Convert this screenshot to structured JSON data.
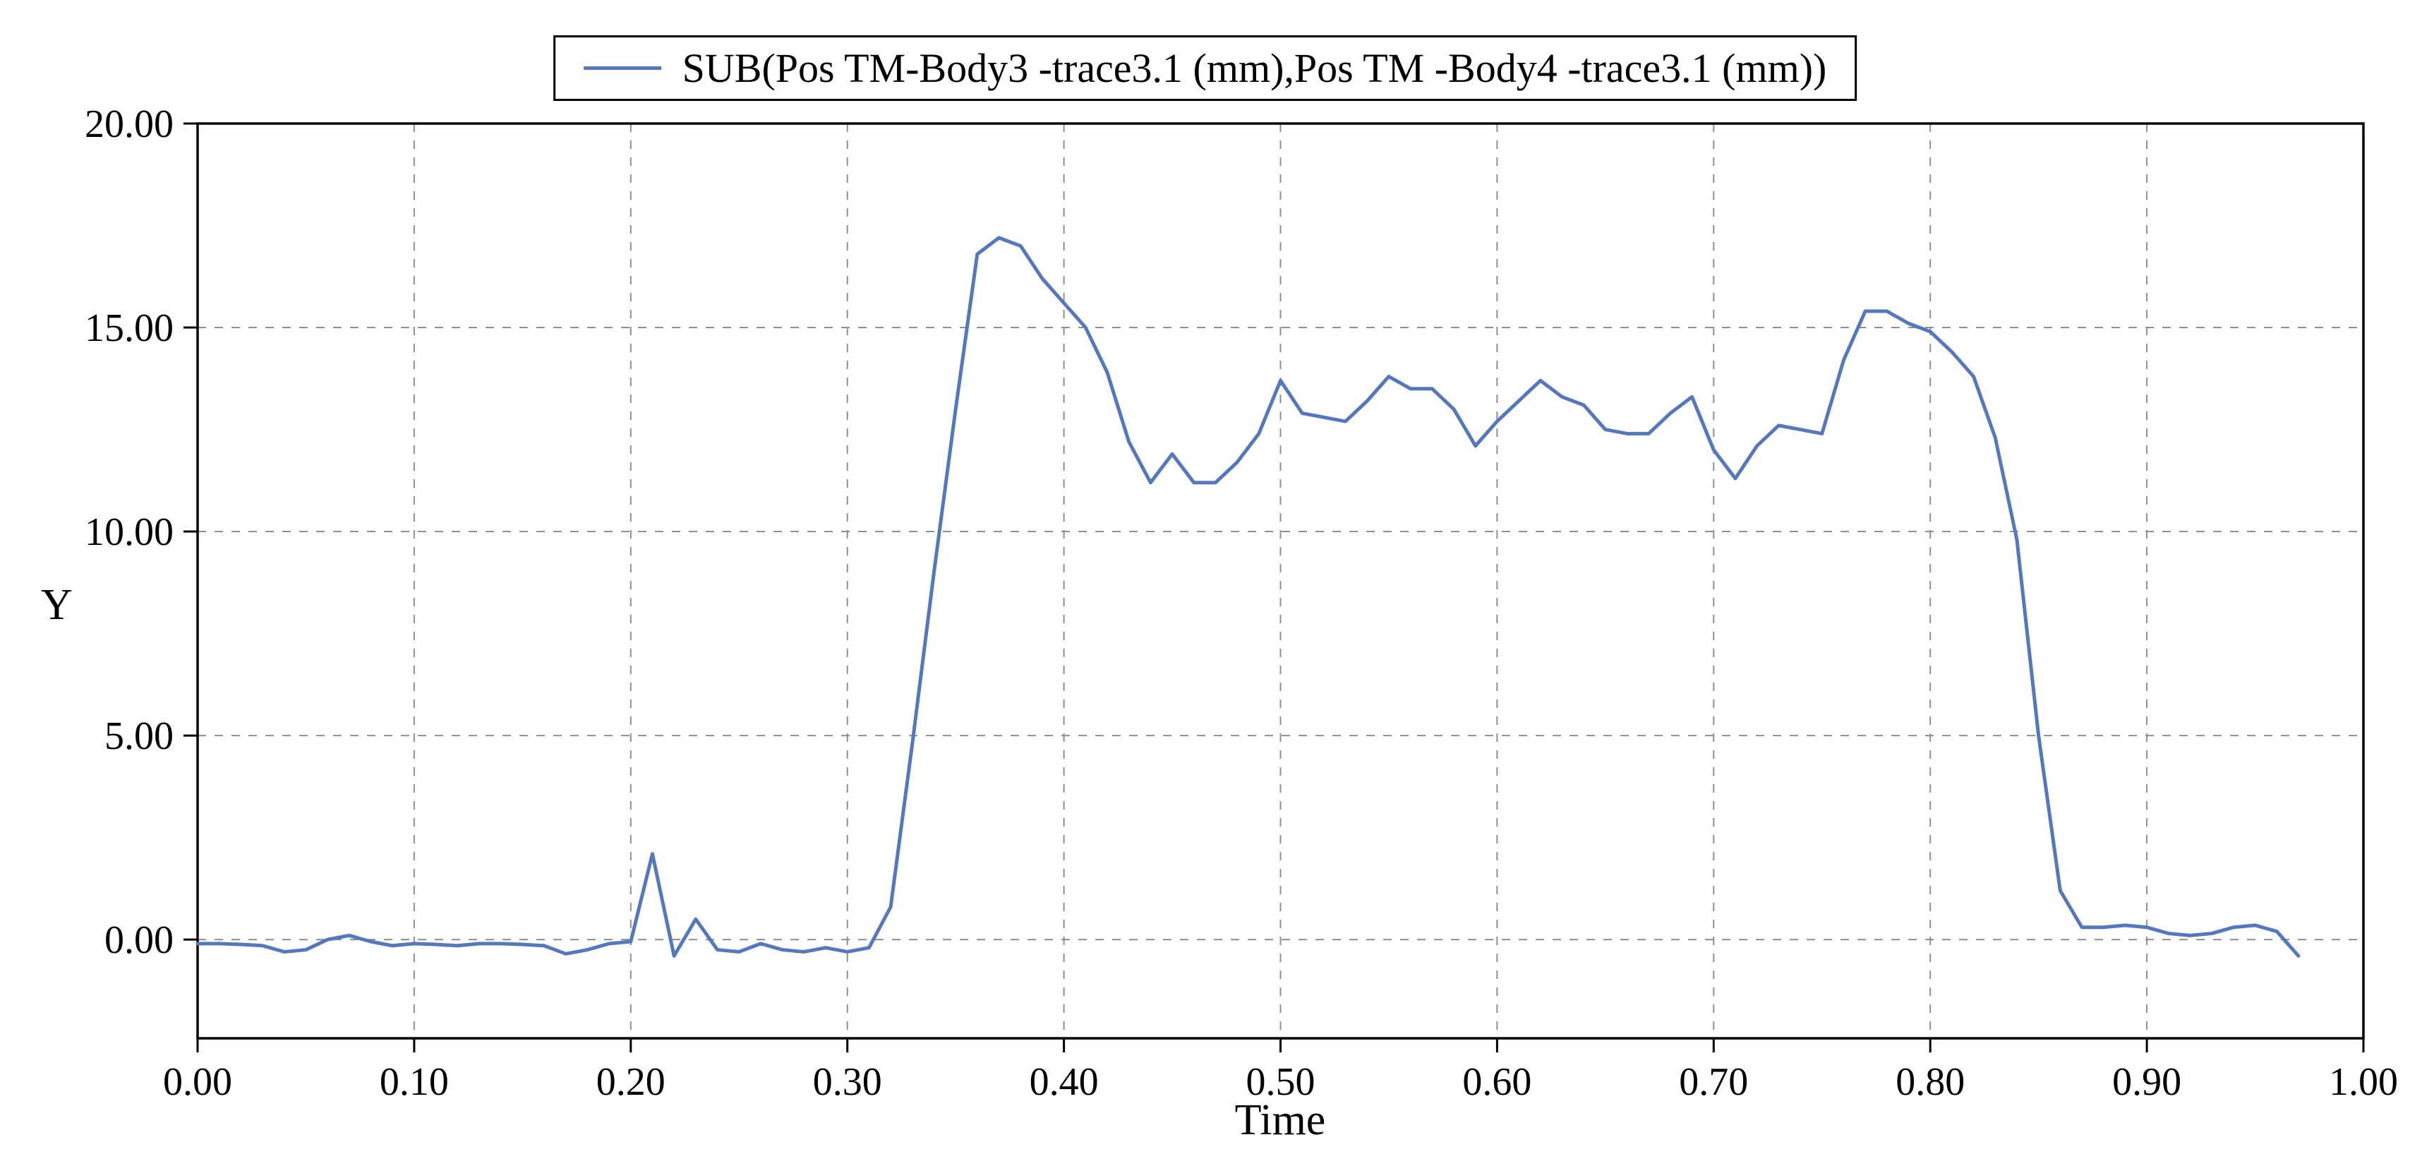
{
  "chart_data": {
    "type": "line",
    "title": "",
    "legend": [
      "SUB(Pos TM-Body3 -trace3.1 (mm),Pos TM -Body4 -trace3.1 (mm))"
    ],
    "xlabel": "Time",
    "ylabel": "Y",
    "xlim": [
      0.0,
      1.0
    ],
    "ylim": [
      -2.42,
      20.0
    ],
    "grid": true,
    "legend_position": "top-center",
    "line_color": "#5577bb",
    "x_ticks": [
      0.0,
      0.1,
      0.2,
      0.3,
      0.4,
      0.5,
      0.6,
      0.7,
      0.8,
      0.9,
      1.0
    ],
    "x_tick_labels": [
      "0.00",
      "0.10",
      "0.20",
      "0.30",
      "0.40",
      "0.50",
      "0.60",
      "0.70",
      "0.80",
      "0.90",
      "1.00"
    ],
    "y_ticks": [
      0.0,
      5.0,
      10.0,
      15.0,
      20.0
    ],
    "y_tick_labels": [
      "0.00",
      "5.00",
      "10.00",
      "15.00",
      "20.00"
    ],
    "series": [
      {
        "name": "SUB(Pos TM-Body3 -trace3.1 (mm),Pos TM -Body4 -trace3.1 (mm))",
        "x": [
          0.0,
          0.01,
          0.02,
          0.03,
          0.04,
          0.05,
          0.06,
          0.07,
          0.08,
          0.09,
          0.1,
          0.11,
          0.12,
          0.13,
          0.14,
          0.15,
          0.16,
          0.17,
          0.18,
          0.19,
          0.2,
          0.21,
          0.22,
          0.23,
          0.24,
          0.25,
          0.26,
          0.27,
          0.28,
          0.29,
          0.3,
          0.31,
          0.32,
          0.33,
          0.34,
          0.35,
          0.36,
          0.37,
          0.38,
          0.39,
          0.4,
          0.41,
          0.42,
          0.43,
          0.44,
          0.45,
          0.46,
          0.47,
          0.48,
          0.49,
          0.5,
          0.51,
          0.52,
          0.53,
          0.54,
          0.55,
          0.56,
          0.57,
          0.58,
          0.59,
          0.6,
          0.61,
          0.62,
          0.63,
          0.64,
          0.65,
          0.66,
          0.67,
          0.68,
          0.69,
          0.7,
          0.71,
          0.72,
          0.73,
          0.74,
          0.75,
          0.76,
          0.77,
          0.78,
          0.79,
          0.8,
          0.81,
          0.82,
          0.83,
          0.84,
          0.85,
          0.86,
          0.87,
          0.88,
          0.89,
          0.9,
          0.91,
          0.92,
          0.93,
          0.94,
          0.95,
          0.96,
          0.97
        ],
        "y": [
          -0.1,
          -0.1,
          -0.12,
          -0.15,
          -0.3,
          -0.25,
          0.0,
          0.1,
          -0.05,
          -0.15,
          -0.1,
          -0.12,
          -0.15,
          -0.1,
          -0.1,
          -0.12,
          -0.15,
          -0.35,
          -0.25,
          -0.1,
          -0.05,
          2.1,
          -0.4,
          0.5,
          -0.25,
          -0.3,
          -0.1,
          -0.25,
          -0.3,
          -0.2,
          -0.3,
          -0.2,
          0.8,
          4.8,
          9.0,
          13.0,
          16.8,
          17.2,
          17.0,
          16.2,
          15.6,
          15.0,
          13.9,
          12.2,
          11.2,
          11.9,
          11.2,
          11.2,
          11.7,
          12.4,
          13.7,
          12.9,
          12.8,
          12.7,
          13.2,
          13.8,
          13.5,
          13.5,
          13.0,
          12.1,
          12.7,
          13.2,
          13.7,
          13.3,
          13.1,
          12.5,
          12.4,
          12.4,
          12.9,
          13.3,
          12.0,
          11.3,
          12.1,
          12.6,
          12.5,
          12.4,
          14.2,
          15.4,
          15.4,
          15.1,
          14.9,
          14.4,
          13.8,
          12.3,
          9.8,
          5.0,
          1.2,
          0.3,
          0.3,
          0.35,
          0.3,
          0.15,
          0.1,
          0.15,
          0.3,
          0.35,
          0.2,
          -0.4
        ]
      }
    ]
  }
}
